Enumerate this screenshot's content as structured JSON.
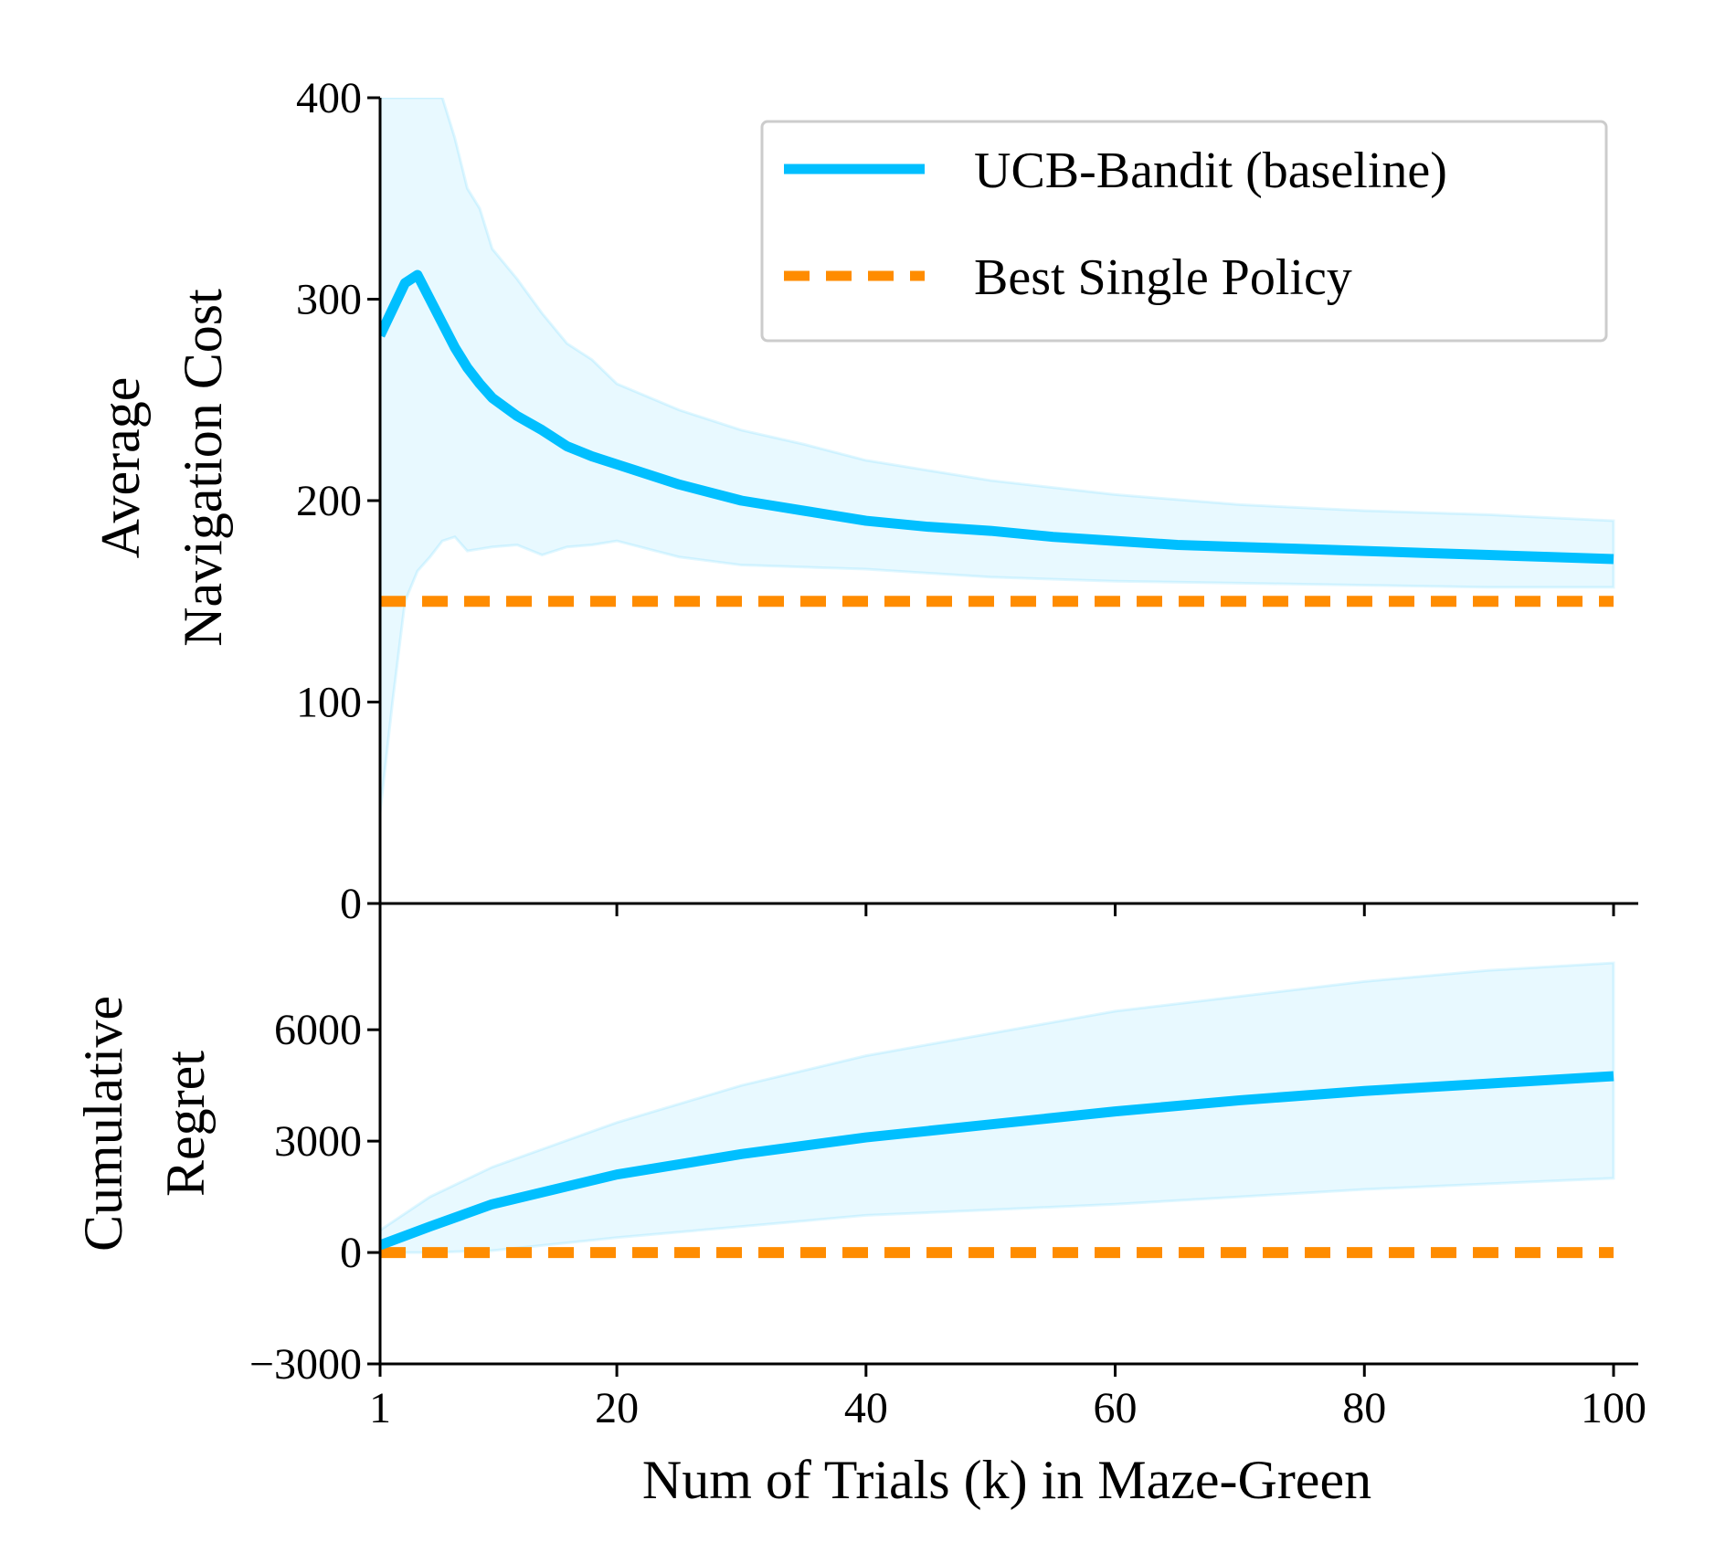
{
  "chart_data": [
    {
      "type": "line",
      "ylabel_lines": [
        "Average",
        "Navigation Cost"
      ],
      "xlim": [
        1,
        100
      ],
      "ylim": [
        0,
        400
      ],
      "yticks": [
        "0",
        "100",
        "200",
        "300",
        "400"
      ],
      "grid": false,
      "legend_position": "top-right",
      "series": [
        {
          "name": "UCB-Bandit (baseline)",
          "color": "#00BFFF",
          "style": "solid",
          "x": [
            1,
            2,
            3,
            4,
            5,
            6,
            7,
            8,
            9,
            10,
            12,
            14,
            16,
            18,
            20,
            25,
            30,
            35,
            40,
            45,
            50,
            55,
            60,
            65,
            70,
            75,
            80,
            85,
            90,
            95,
            100
          ],
          "y": [
            282,
            295,
            308,
            312,
            300,
            288,
            276,
            266,
            258,
            251,
            242,
            235,
            227,
            222,
            218,
            208,
            200,
            195,
            190,
            187,
            185,
            182,
            180,
            178,
            177,
            176,
            175,
            174,
            173,
            172,
            171
          ],
          "band_x": [
            1,
            2,
            3,
            4,
            5,
            6,
            7,
            8,
            9,
            10,
            12,
            14,
            16,
            18,
            20,
            25,
            30,
            35,
            40,
            50,
            60,
            70,
            80,
            90,
            100
          ],
          "band_upper": [
            400,
            400,
            400,
            400,
            400,
            400,
            380,
            355,
            345,
            325,
            310,
            293,
            278,
            270,
            258,
            245,
            235,
            228,
            220,
            210,
            203,
            198,
            195,
            193,
            190
          ],
          "band_lower": [
            45,
            100,
            150,
            165,
            172,
            180,
            182,
            175,
            176,
            177,
            178,
            173,
            177,
            178,
            180,
            172,
            168,
            167,
            166,
            162,
            160,
            159,
            158,
            157,
            157
          ]
        },
        {
          "name": "Best Single Policy",
          "color": "#FF8C00",
          "style": "dashed",
          "x": [
            1,
            100
          ],
          "y": [
            150,
            150
          ]
        }
      ]
    },
    {
      "type": "line",
      "ylabel_lines": [
        "Cumulative",
        "Regret"
      ],
      "xlabel": "Num of Trials (k) in Maze-Green",
      "xlim": [
        1,
        100
      ],
      "ylim": [
        -3000,
        9400
      ],
      "xticks": [
        "1",
        "20",
        "40",
        "60",
        "80",
        "100"
      ],
      "yticks": [
        "−3000",
        "0",
        "3000",
        "6000"
      ],
      "grid": false,
      "series": [
        {
          "name": "UCB-Bandit (baseline)",
          "color": "#00BFFF",
          "style": "solid",
          "x": [
            1,
            5,
            10,
            20,
            30,
            40,
            50,
            60,
            70,
            80,
            90,
            100
          ],
          "y": [
            200,
            700,
            1300,
            2100,
            2650,
            3100,
            3450,
            3800,
            4100,
            4350,
            4550,
            4750
          ],
          "band_upper": [
            600,
            1500,
            2300,
            3500,
            4500,
            5300,
            5900,
            6500,
            6900,
            7300,
            7600,
            7800
          ],
          "band_lower": [
            0,
            0,
            50,
            400,
            700,
            1000,
            1150,
            1300,
            1500,
            1700,
            1850,
            2000
          ]
        },
        {
          "name": "Best Single Policy",
          "color": "#FF8C00",
          "style": "dashed",
          "x": [
            1,
            100
          ],
          "y": [
            0,
            0
          ]
        }
      ]
    }
  ]
}
